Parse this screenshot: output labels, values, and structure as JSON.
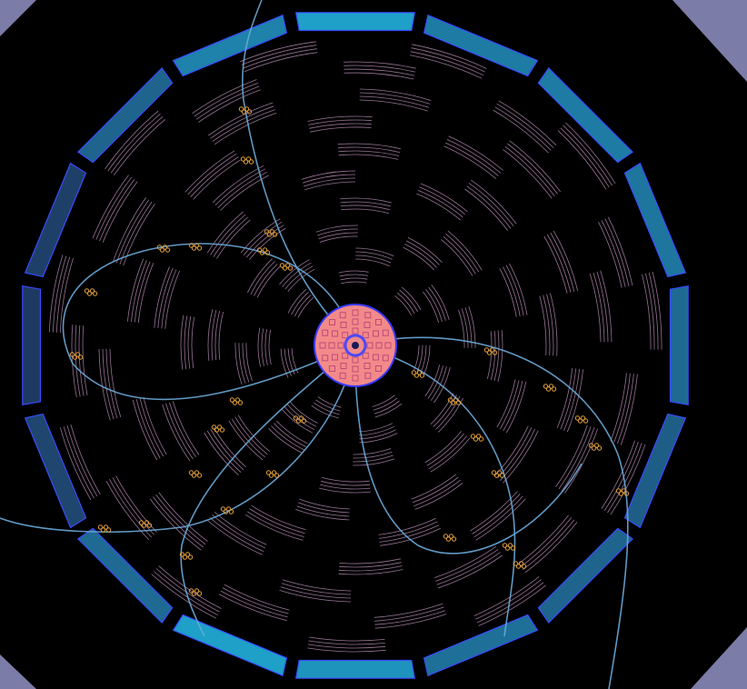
{
  "display": {
    "background": "#000000",
    "corner_color": "#7c7ca8",
    "barrel_colors": [
      "#1e8ec8",
      "#1a6fa3",
      "#2a2a55",
      "#3a3a66"
    ],
    "barrel_stroke": "#3a4aff",
    "layer_stroke": "#c99ac8",
    "track_color": "#6aa8d8",
    "hit_color": "#e8a23a",
    "core_fill": "#f28a8a",
    "core_ring": "#3a3aff"
  },
  "barrel_segments": {
    "count": 16,
    "intensity": [
      1.0,
      0.7,
      0.7,
      0.65,
      0.55,
      0.45,
      0.5,
      0.6,
      0.9,
      1.0,
      0.55,
      0.25,
      0.15,
      0.2,
      0.5,
      0.75
    ]
  },
  "tracks": [
    {
      "name": "track-upper",
      "direction": "up"
    },
    {
      "name": "track-left",
      "direction": "left"
    },
    {
      "name": "track-lower-left",
      "direction": "lower-left"
    },
    {
      "name": "track-lower-right",
      "direction": "lower-right"
    },
    {
      "name": "track-right",
      "direction": "right"
    }
  ]
}
